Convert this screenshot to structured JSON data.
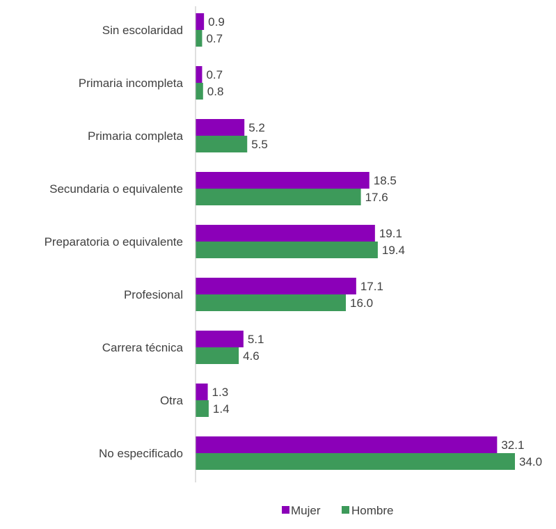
{
  "chart_data": {
    "type": "bar",
    "orientation": "horizontal",
    "categories": [
      "Sin escolaridad",
      "Primaria incompleta",
      "Primaria completa",
      "Secundaria o equivalente",
      "Preparatoria o equivalente",
      "Profesional",
      "Carrera técnica",
      "Otra",
      "No especificado"
    ],
    "series": [
      {
        "name": "Mujer",
        "color": "#8B00B8",
        "values": [
          0.9,
          0.7,
          5.2,
          18.5,
          19.1,
          17.1,
          5.1,
          1.3,
          32.1
        ],
        "labels": [
          "0.9",
          "0.7",
          "5.2",
          "18.5",
          "19.1",
          "17.1",
          "5.1",
          "1.3",
          "32.1"
        ]
      },
      {
        "name": "Hombre",
        "color": "#3D9A5A",
        "values": [
          0.7,
          0.8,
          5.5,
          17.6,
          19.4,
          16.0,
          4.6,
          1.4,
          34.0
        ],
        "labels": [
          "0.7",
          "0.8",
          "5.5",
          "17.6",
          "19.4",
          "16.0",
          "4.6",
          "1.4",
          "34.0"
        ]
      }
    ],
    "title": "",
    "xlabel": "",
    "ylabel": "",
    "xlim": [
      0,
      34.0
    ],
    "grid": false,
    "legend_position": "bottom-center"
  },
  "colors": {
    "axis": "#BFBFBF",
    "text": "#404040"
  }
}
